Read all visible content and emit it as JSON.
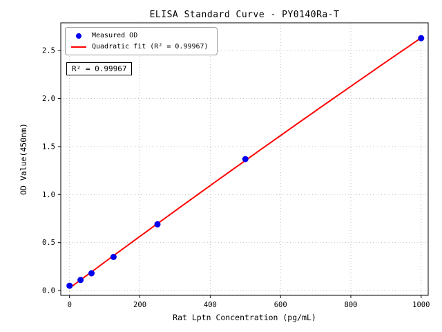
{
  "chart_data": {
    "type": "scatter",
    "title": "ELISA Standard Curve - PY0140Ra-T",
    "xlabel": "Rat Lptn Concentration (pg/mL)",
    "ylabel": "OD Value(450nm)",
    "x_ticks": [
      0,
      200,
      400,
      600,
      800,
      1000
    ],
    "y_ticks": [
      0.0,
      0.5,
      1.0,
      1.5,
      2.0,
      2.5
    ],
    "xlim": [
      -25,
      1020
    ],
    "ylim": [
      -0.05,
      2.79
    ],
    "grid": true,
    "colors": {
      "points": "#0000ee",
      "fit_line": "#ff0000",
      "grid": "#b8b8b8",
      "frame": "#000000"
    },
    "series": [
      {
        "name": "Measured OD",
        "type": "scatter",
        "x": [
          0,
          31.25,
          62.5,
          125,
          250,
          500,
          1000
        ],
        "y": [
          0.05,
          0.11,
          0.18,
          0.35,
          0.69,
          1.37,
          2.63
        ]
      },
      {
        "name": "Quadratic fit",
        "type": "line",
        "fit": {
          "kind": "quadratic",
          "coefficients": [
            0.0259,
            0.002711,
            -1.036e-07
          ],
          "r_squared": 0.99967,
          "x_range": [
            0,
            1000
          ]
        }
      }
    ],
    "legend": {
      "position": "upper-left",
      "items": [
        {
          "label": "Measured OD",
          "marker": "circle"
        },
        {
          "label": "Quadratic fit (R² = 0.99967)",
          "marker": "line"
        }
      ]
    },
    "annotation": {
      "text": "R² = 0.99967"
    }
  }
}
